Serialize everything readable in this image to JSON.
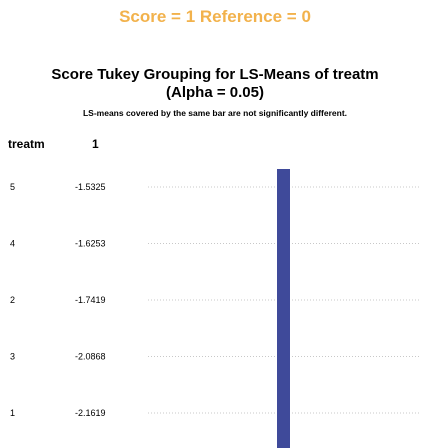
{
  "banner": {
    "score_text": "Score = 1 Reference = 0",
    "color": "#F2B24C"
  },
  "chart_data": {
    "type": "table",
    "title": "Score Tukey Grouping for LS-Means of treatm",
    "alpha_line": "(Alpha = 0.05)",
    "note": "LS-means covered by the same bar are not significantly different.",
    "columns": [
      "treatm",
      "1"
    ],
    "rows": [
      {
        "treatm": "5",
        "lsmean": -1.5325,
        "lsmean_label": "-1.5325"
      },
      {
        "treatm": "4",
        "lsmean": -1.6253,
        "lsmean_label": "-1.6253"
      },
      {
        "treatm": "2",
        "lsmean": -1.7419,
        "lsmean_label": "-1.7419"
      },
      {
        "treatm": "3",
        "lsmean": -2.0868,
        "lsmean_label": "-2.0868"
      },
      {
        "treatm": "1",
        "lsmean": -2.1619,
        "lsmean_label": "-2.1619"
      }
    ],
    "groups": [
      {
        "from_row": 0,
        "to_row": 4
      }
    ],
    "bar_color": "#3F4A9A",
    "dotted_line_color": "#C8C8C8"
  }
}
